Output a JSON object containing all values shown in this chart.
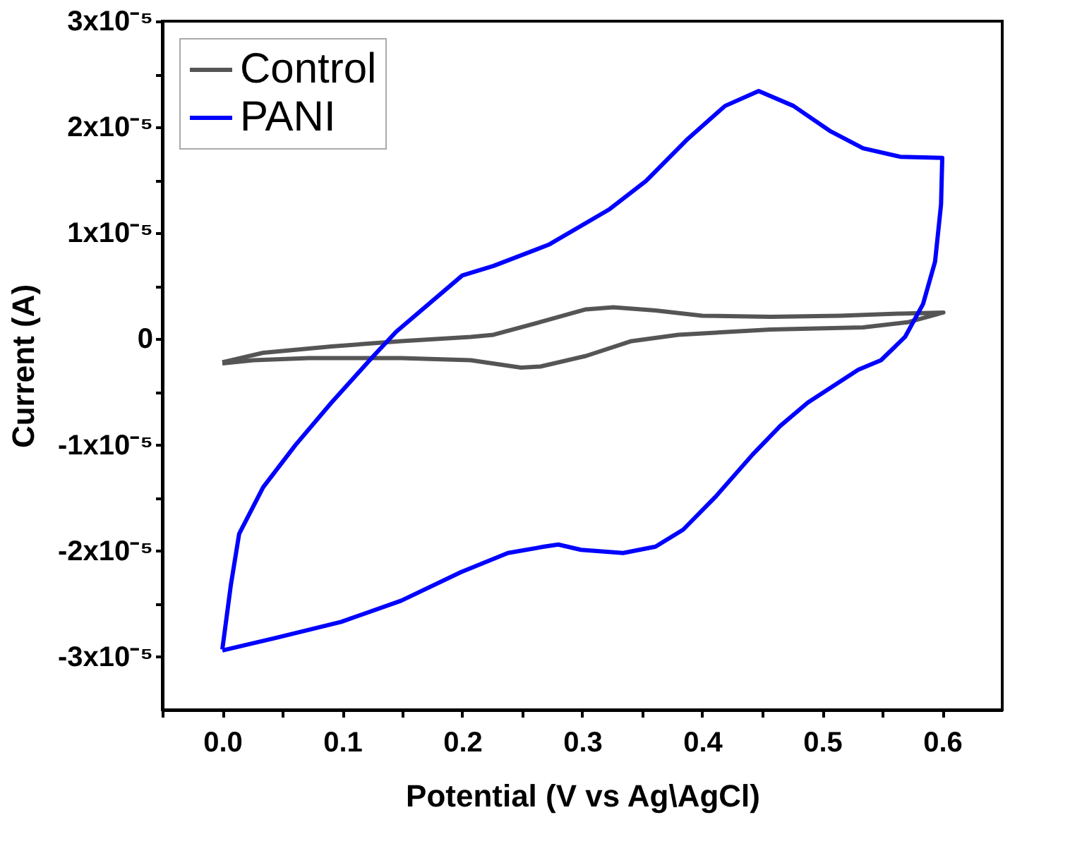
{
  "chart_data": {
    "type": "line",
    "xlabel": "Potential (V vs Ag\\AgCl)",
    "ylabel": "Current (A)",
    "xlim": [
      -0.05,
      0.65
    ],
    "ylim": [
      -3.5e-05,
      3e-05
    ],
    "xticks": [
      {
        "value": -0.05,
        "label": null
      },
      {
        "value": 0,
        "label": "0.0"
      },
      {
        "value": 0.05,
        "label": null
      },
      {
        "value": 0.1,
        "label": "0.1"
      },
      {
        "value": 0.15,
        "label": null
      },
      {
        "value": 0.2,
        "label": "0.2"
      },
      {
        "value": 0.25,
        "label": null
      },
      {
        "value": 0.3,
        "label": "0.3"
      },
      {
        "value": 0.35,
        "label": null
      },
      {
        "value": 0.4,
        "label": "0.4"
      },
      {
        "value": 0.45,
        "label": null
      },
      {
        "value": 0.5,
        "label": "0.5"
      },
      {
        "value": 0.55,
        "label": null
      },
      {
        "value": 0.6,
        "label": "0.6"
      }
    ],
    "yticks": [
      {
        "value": -3e-05,
        "label": "-3x10⁻⁵"
      },
      {
        "value": -2.5e-05,
        "label": null
      },
      {
        "value": -2e-05,
        "label": "-2x10⁻⁵"
      },
      {
        "value": -1.5e-05,
        "label": null
      },
      {
        "value": -1e-05,
        "label": "-1x10⁻⁵"
      },
      {
        "value": -5e-06,
        "label": null
      },
      {
        "value": 0,
        "label": "0"
      },
      {
        "value": 5e-06,
        "label": null
      },
      {
        "value": 1e-05,
        "label": "1x10⁻⁵"
      },
      {
        "value": 1.5e-05,
        "label": null
      },
      {
        "value": 2e-05,
        "label": "2x10⁻⁵"
      },
      {
        "value": 2.5e-05,
        "label": null
      },
      {
        "value": 3e-05,
        "label": "3x10⁻⁵"
      }
    ],
    "grid": false,
    "legend": "top left",
    "marker": "none",
    "line_style": "solid",
    "series": [
      {
        "name": "Control",
        "color": "#555555",
        "x": [
          0,
          0.034,
          0.091,
          0.149,
          0.207,
          0.226,
          0.265,
          0.303,
          0.326,
          0.361,
          0.4,
          0.457,
          0.515,
          0.565,
          0.601,
          0.572,
          0.534,
          0.457,
          0.38,
          0.341,
          0.303,
          0.265,
          0.249,
          0.207,
          0.149,
          0.072,
          0.026,
          0
        ],
        "values": [
          -2.2e-06,
          -1.3e-06,
          -7e-07,
          -2e-07,
          2e-07,
          4e-07,
          1.6e-06,
          2.8e-06,
          3e-06,
          2.7e-06,
          2.2e-06,
          2.1e-06,
          2.2e-06,
          2.4e-06,
          2.5e-06,
          1.6e-06,
          1.1e-06,
          9e-07,
          4e-07,
          -2e-07,
          -1.6e-06,
          -2.6e-06,
          -2.7e-06,
          -2e-06,
          -1.8e-06,
          -1.8e-06,
          -2e-06,
          -2.3e-06
        ]
      },
      {
        "name": "PANI",
        "color": "#0000ff",
        "x": [
          0,
          0.007,
          0.014,
          0.034,
          0.061,
          0.091,
          0.126,
          0.145,
          0.2,
          0.226,
          0.272,
          0.322,
          0.353,
          0.388,
          0.419,
          0.447,
          0.476,
          0.507,
          0.534,
          0.565,
          0.6,
          0.599,
          0.594,
          0.584,
          0.569,
          0.549,
          0.53,
          0.488,
          0.465,
          0.442,
          0.411,
          0.384,
          0.361,
          0.334,
          0.299,
          0.28,
          0.268,
          0.238,
          0.199,
          0.149,
          0.099,
          0.045,
          0
        ],
        "values": [
          -2.93e-05,
          -2.33e-05,
          -1.84e-05,
          -1.4e-05,
          -1e-05,
          -6e-06,
          -1.6e-06,
          7e-07,
          6e-06,
          6.9e-06,
          8.9e-06,
          1.22e-05,
          1.49e-05,
          1.89e-05,
          2.2e-05,
          2.34e-05,
          2.2e-05,
          1.96e-05,
          1.8e-05,
          1.72e-05,
          1.71e-05,
          1.27e-05,
          7.3e-06,
          3.3e-06,
          2e-07,
          -2e-06,
          -2.9e-06,
          -6e-06,
          -8.2e-06,
          -1.09e-05,
          -1.49e-05,
          -1.8e-05,
          -1.96e-05,
          -2.02e-05,
          -1.99e-05,
          -1.94e-05,
          -1.96e-05,
          -2.02e-05,
          -2.2e-05,
          -2.47e-05,
          -2.67e-05,
          -2.82e-05,
          -2.94e-05
        ]
      }
    ]
  }
}
